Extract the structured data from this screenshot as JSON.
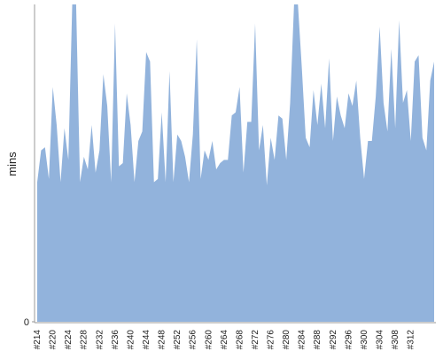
{
  "chart_data": {
    "type": "area",
    "y_label": "mins",
    "color": "#92b3dc",
    "categories": [
      "#214",
      null,
      null,
      null,
      "#220",
      null,
      null,
      null,
      "#224",
      null,
      null,
      null,
      "#228",
      null,
      null,
      null,
      "#232",
      null,
      null,
      null,
      "#236",
      null,
      null,
      null,
      "#240",
      null,
      null,
      null,
      "#244",
      null,
      null,
      null,
      "#248",
      null,
      null,
      null,
      "#252",
      null,
      null,
      null,
      "#256",
      null,
      null,
      null,
      "#260",
      null,
      null,
      null,
      "#264",
      null,
      null,
      null,
      "#268",
      null,
      null,
      null,
      "#272",
      null,
      null,
      null,
      "#276",
      null,
      null,
      null,
      "#280",
      null,
      null,
      null,
      "#284",
      null,
      null,
      null,
      "#288",
      null,
      null,
      null,
      "#292",
      null,
      null,
      null,
      "#296",
      null,
      null,
      null,
      "#300",
      null,
      null,
      null,
      "#304",
      null,
      null,
      null,
      "#308",
      null,
      null,
      null,
      "#312",
      null,
      null,
      null,
      null,
      null,
      null
    ],
    "values": [
      44,
      54,
      55,
      45,
      74,
      62,
      44,
      61,
      51,
      100,
      100,
      44,
      52,
      48,
      62,
      47,
      54,
      78,
      68,
      44,
      94,
      49,
      50,
      72,
      62,
      44,
      57,
      60,
      85,
      82,
      44,
      45,
      66,
      44,
      79,
      44,
      59,
      57,
      52,
      44,
      59,
      89,
      45,
      54,
      51,
      57,
      48,
      50,
      51,
      51,
      65,
      66,
      74,
      47,
      63,
      63,
      94,
      54,
      62,
      43,
      58,
      51,
      65,
      64,
      51,
      69,
      100,
      100,
      80,
      58,
      55,
      73,
      62,
      75,
      61,
      83,
      57,
      71,
      65,
      61,
      72,
      68,
      76,
      58,
      45,
      57,
      57,
      71,
      93,
      69,
      60,
      86,
      61,
      95,
      69,
      73,
      57,
      82,
      84,
      58,
      54,
      76,
      82
    ],
    "ylim": [
      0,
      100
    ],
    "yticks": [
      0
    ]
  }
}
